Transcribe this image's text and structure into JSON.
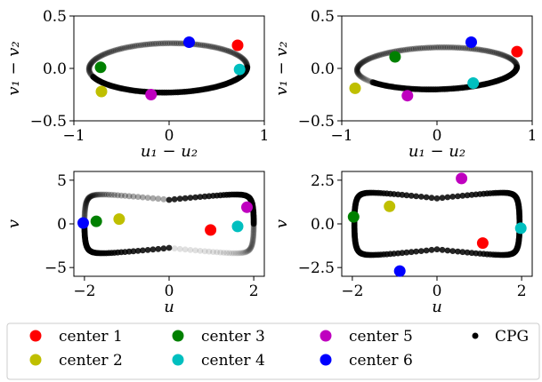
{
  "centers": [
    {
      "name": "center 1",
      "color": "#ff0000"
    },
    {
      "name": "center 2",
      "color": "#bfbf00"
    },
    {
      "name": "center 3",
      "color": "#008000"
    },
    {
      "name": "center 4",
      "color": "#00bfbf"
    },
    {
      "name": "center 5",
      "color": "#bf00bf"
    },
    {
      "name": "center 6",
      "color": "#0000ff"
    }
  ],
  "cpg_label": "CPG",
  "chart_data": [
    {
      "type": "scatter",
      "xlabel": "u₁ − u₂",
      "ylabel": "v₁ − v₂",
      "xlim": [
        -1,
        1
      ],
      "ylim": [
        -0.5,
        0.5
      ],
      "xticks": [
        "−1",
        "0",
        "1"
      ],
      "yticks": [
        "0.5",
        "0.0",
        "−0.5"
      ],
      "xtick_values": [
        -1,
        0,
        1
      ],
      "ytick_values": [
        0.5,
        0.0,
        -0.5
      ],
      "trajectory": {
        "cx": -0.01,
        "cy": 0.005,
        "a": 0.84,
        "b": 0.235,
        "tilt": 0.15,
        "dark_from": 0.55,
        "dark_to": 1.15
      },
      "centers": [
        {
          "name": "center 1",
          "x": 0.72,
          "y": 0.22
        },
        {
          "name": "center 2",
          "x": -0.71,
          "y": -0.22
        },
        {
          "name": "center 3",
          "x": -0.72,
          "y": 0.01
        },
        {
          "name": "center 4",
          "x": 0.74,
          "y": -0.01
        },
        {
          "name": "center 5",
          "x": -0.19,
          "y": -0.25
        },
        {
          "name": "center 6",
          "x": 0.21,
          "y": 0.25
        }
      ]
    },
    {
      "type": "scatter",
      "xlabel": "u₁ − u₂",
      "ylabel": "v₁ − v₂",
      "xlim": [
        -1,
        1
      ],
      "ylim": [
        -0.5,
        0.5
      ],
      "xticks": [
        "−1",
        "0",
        "1"
      ],
      "yticks": [
        "0.5",
        "0.0",
        "−0.5"
      ],
      "xtick_values": [
        -1,
        0,
        1
      ],
      "ytick_values": [
        0.5,
        0.0,
        -0.5
      ],
      "trajectory": {
        "cx": 0.0,
        "cy": 0.0,
        "a": 0.86,
        "b": 0.2,
        "tilt": 0.22,
        "dark_from": 0.6,
        "dark_to": 1.2
      },
      "centers": [
        {
          "name": "center 1",
          "x": 0.84,
          "y": 0.16
        },
        {
          "name": "center 2",
          "x": -0.86,
          "y": -0.19
        },
        {
          "name": "center 3",
          "x": -0.44,
          "y": 0.11
        },
        {
          "name": "center 4",
          "x": 0.38,
          "y": -0.14
        },
        {
          "name": "center 5",
          "x": -0.31,
          "y": -0.26
        },
        {
          "name": "center 6",
          "x": 0.36,
          "y": 0.25
        }
      ]
    },
    {
      "type": "scatter",
      "xlabel": "u",
      "ylabel": "v",
      "xlim": [
        -2.25,
        2.25
      ],
      "ylim": [
        -6,
        6
      ],
      "xticks": [
        "−2",
        "0",
        "2"
      ],
      "yticks": [
        "5",
        "0",
        "−5"
      ],
      "xtick_values": [
        -2,
        0,
        2
      ],
      "ytick_values": [
        5,
        0,
        -5
      ],
      "trajectory": {
        "kind": "relaxation",
        "amp": 2.05,
        "vmax": 5.0,
        "dark_from": 0.0,
        "dark_to": 0.25,
        "dark_from2": 0.5,
        "dark_to2": 0.75
      },
      "centers": [
        {
          "name": "center 1",
          "x": 0.98,
          "y": -0.7
        },
        {
          "name": "center 2",
          "x": -1.18,
          "y": 0.55
        },
        {
          "name": "center 3",
          "x": -1.72,
          "y": 0.3
        },
        {
          "name": "center 4",
          "x": 1.62,
          "y": -0.3
        },
        {
          "name": "center 5",
          "x": 1.84,
          "y": 1.9
        },
        {
          "name": "center 6",
          "x": -2.03,
          "y": 0.1
        }
      ]
    },
    {
      "type": "scatter",
      "xlabel": "u",
      "ylabel": "v",
      "xlim": [
        -2.25,
        2.25
      ],
      "ylim": [
        -3.0,
        3.0
      ],
      "xticks": [
        "−2",
        "0",
        "2"
      ],
      "yticks": [
        "2.5",
        "0.0",
        "−2.5"
      ],
      "xtick_values": [
        -2,
        0,
        2
      ],
      "ytick_values": [
        2.5,
        0.0,
        -2.5
      ],
      "trajectory": {
        "kind": "relaxation",
        "amp": 2.0,
        "vmax": 2.65,
        "dark_from": 0.0,
        "dark_to": 1.0
      },
      "centers": [
        {
          "name": "center 1",
          "x": 1.08,
          "y": -1.1
        },
        {
          "name": "center 2",
          "x": -1.12,
          "y": 1.0
        },
        {
          "name": "center 3",
          "x": -1.97,
          "y": 0.4
        },
        {
          "name": "center 4",
          "x": 1.98,
          "y": -0.25
        },
        {
          "name": "center 5",
          "x": 0.58,
          "y": 2.6
        },
        {
          "name": "center 6",
          "x": -0.88,
          "y": -2.7
        }
      ]
    }
  ]
}
